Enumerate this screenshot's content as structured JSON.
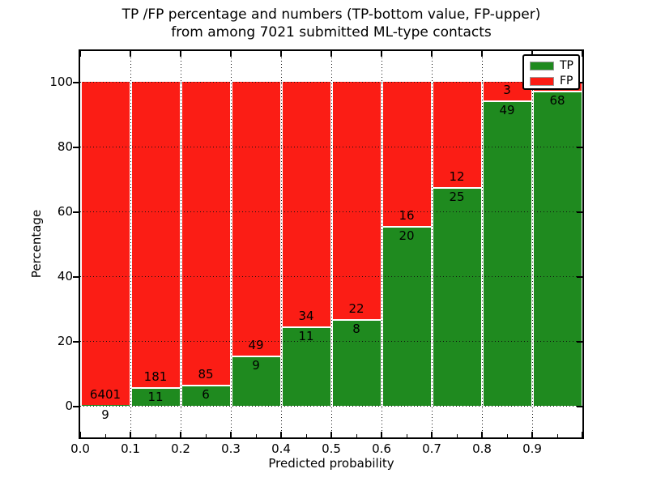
{
  "title": {
    "line1": "TP /FP percentage and numbers (TP-bottom value, FP-upper)",
    "line2": "from among 7021 submitted ML-type contacts"
  },
  "axes": {
    "ylabel": "Percentage",
    "xlabel": "Predicted probability",
    "ytick_labels": [
      "0",
      "20",
      "40",
      "60",
      "80",
      "100"
    ],
    "ytick_values": [
      0,
      20,
      40,
      60,
      80,
      100
    ],
    "xtick_labels": [
      "0.0",
      "0.1",
      "0.2",
      "0.3",
      "0.4",
      "0.5",
      "0.6",
      "0.7",
      "0.8",
      "0.9"
    ],
    "ylim": [
      -10,
      110
    ],
    "xlim": [
      0.0,
      1.0
    ]
  },
  "legend": {
    "items": [
      {
        "label": "TP",
        "color": "#1f8a1f"
      },
      {
        "label": "FP",
        "color": "#fb1d15"
      }
    ]
  },
  "colors": {
    "tp": "#1f8a1f",
    "fp": "#fb1d15",
    "background": "#ffffff",
    "grid": "#111111"
  },
  "chart_data": {
    "type": "bar",
    "stacked": true,
    "normalized_to_percent": true,
    "title": "TP /FP percentage and numbers (TP-bottom value, FP-upper) from among 7021 submitted ML-type contacts",
    "xlabel": "Predicted probability",
    "ylabel": "Percentage",
    "total_contacts": 7021,
    "bin_edges": [
      0.0,
      0.1,
      0.2,
      0.3,
      0.4,
      0.5,
      0.6,
      0.7,
      0.8,
      0.9,
      1.0
    ],
    "series": [
      {
        "name": "TP",
        "counts": [
          9,
          11,
          6,
          9,
          11,
          8,
          20,
          25,
          49,
          68
        ]
      },
      {
        "name": "FP",
        "counts": [
          6401,
          181,
          85,
          49,
          34,
          22,
          16,
          12,
          3,
          2
        ]
      }
    ],
    "bar_text_labels": {
      "tp": [
        "9",
        "11",
        "6",
        "9",
        "11",
        "8",
        "20",
        "25",
        "49",
        "68"
      ],
      "fp": [
        "6401",
        "181",
        "85",
        "49",
        "34",
        "22",
        "16",
        "12",
        "3",
        ""
      ]
    },
    "ylim": [
      -10,
      110
    ],
    "grid": "dotted",
    "legend_position": "upper right"
  }
}
